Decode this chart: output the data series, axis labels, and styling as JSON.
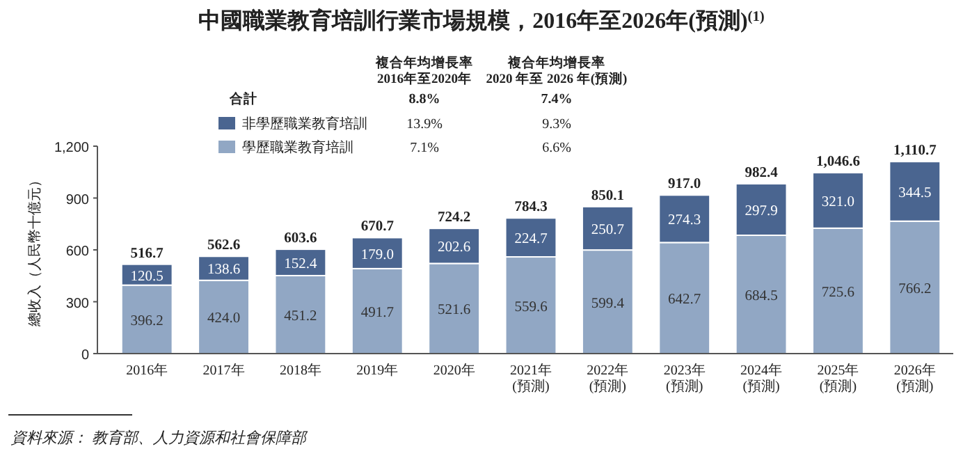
{
  "chart_data": {
    "type": "bar",
    "stacked": true,
    "title": "中國職業教育培訓行業市場規模，2016年至2026年(預測)$^{(1)}$",
    "ylabel": "總收入（人民幣十億元）",
    "categories": [
      "2016年",
      "2017年",
      "2018年",
      "2019年",
      "2020年",
      "2021年\n(預測)",
      "2022年\n(預測)",
      "2023年\n(預測)",
      "2024年\n(預測)",
      "2025年\n(預測)",
      "2026年\n(預測)"
    ],
    "series": [
      {
        "name": "學歷職業教育培訓",
        "color": "#91a7c4",
        "values": [
          396.2,
          424.0,
          451.2,
          491.7,
          521.6,
          559.6,
          599.4,
          642.7,
          684.5,
          725.6,
          766.2
        ],
        "value_labels": [
          "396.2",
          "424.0",
          "451.2",
          "491.7",
          "521.6",
          "559.6",
          "599.4",
          "642.7",
          "684.5",
          "725.6",
          "766.2"
        ]
      },
      {
        "name": "非學歷職業教育培訓",
        "color": "#4a6590",
        "values": [
          120.5,
          138.6,
          152.4,
          179.0,
          202.6,
          224.7,
          250.7,
          274.3,
          297.9,
          321.0,
          344.5
        ],
        "value_labels": [
          "120.5",
          "138.6",
          "152.4",
          "179.0",
          "202.6",
          "224.7",
          "250.7",
          "274.3",
          "297.9",
          "321.0",
          "344.5"
        ]
      }
    ],
    "totals": [
      "516.7",
      "562.6",
      "603.6",
      "670.7",
      "724.2",
      "784.3",
      "850.1",
      "917.0",
      "982.4",
      "1,046.6",
      "1,110.7"
    ],
    "ylim": [
      0,
      1200
    ],
    "yticks": [
      0,
      300,
      600,
      900,
      {
        "value": 1200,
        "label": "1,200"
      }
    ],
    "grid": false,
    "legend": "top",
    "annotations": [
      "複合年均增長率\n2016年至2020年",
      "複合年均增長率\n2020 年至 2026 年(預測)",
      "合計",
      "8.8%",
      "7.4%",
      "13.9%",
      "9.3%",
      "7.1%",
      "6.6%",
      "資料來源：  教育部、人力資源和社會保障部"
    ]
  }
}
